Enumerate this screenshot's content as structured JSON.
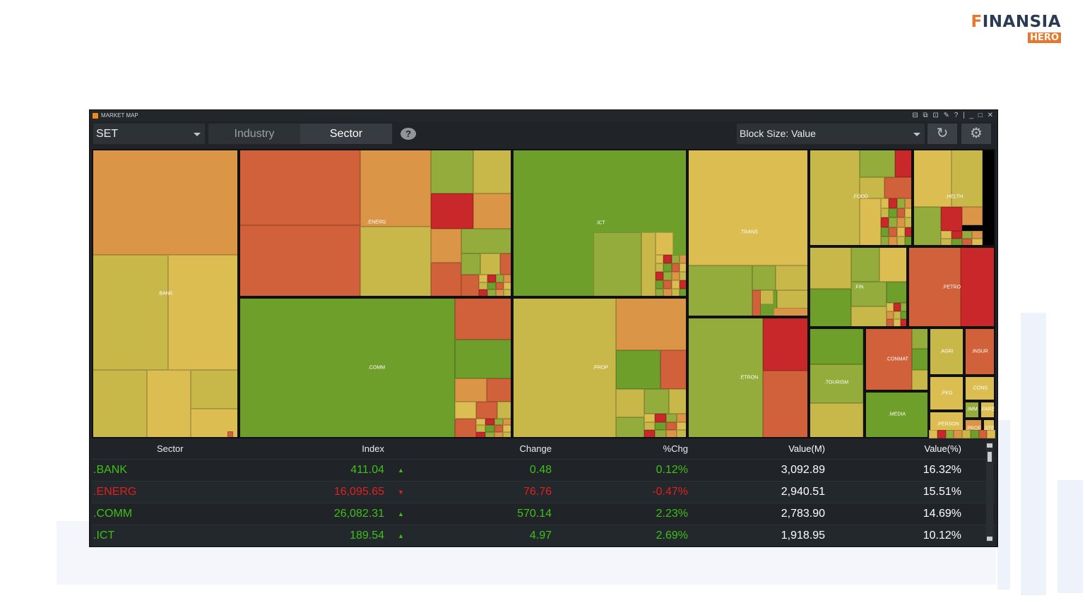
{
  "brand": {
    "name_prefix": "F",
    "name": "INANSIA",
    "sub": "HERO"
  },
  "window": {
    "title": "MARKET MAP",
    "controls": "⊟ ⧉ ⊡ ✎ ? | _ □ ✕"
  },
  "toolbar": {
    "market": "SET",
    "tab_industry": "Industry",
    "tab_sector": "Sector",
    "help": "?",
    "block_size": "Block Size: Value",
    "refresh_icon": "↻",
    "settings_icon": "⚙"
  },
  "colors": {
    "up_strong": "#6e9f2a",
    "up_mid": "#93ac3c",
    "neutral": "#c8b84a",
    "yellow": "#dbbd52",
    "orange": "#db9547",
    "down_mid": "#d1613a",
    "down_strong": "#c9282a",
    "positive_text": "#3fbf18",
    "negative_text": "#e02020"
  },
  "treemap": {
    "sectors": [
      ".BANK",
      ".ENERG",
      ".COMM",
      ".ICT",
      ".PROP",
      ".TRANS",
      ".ETRON",
      ".FOOD",
      ".HELTH",
      ".FIN",
      ".PETRO",
      ".TOURISM",
      ".CONMAT",
      ".AGRI",
      ".INSUR",
      ".PKG",
      ".CONS",
      ".MEDIA",
      ".PERSON",
      ".IMM",
      ".FARE",
      ".PROF",
      ".STE"
    ]
  },
  "grid": {
    "headers": {
      "sector": "Sector",
      "index": "Index",
      "change": "Change",
      "pct": "%Chg",
      "value": "Value(M)",
      "value_pct": "Value(%)"
    },
    "rows": [
      {
        "sector": ".BANK",
        "index": "411.04",
        "arrow": "▲",
        "change": "0.48",
        "pct": "0.12%",
        "value": "3,092.89",
        "value_pct": "16.32%",
        "dir": "up"
      },
      {
        "sector": ".ENERG",
        "index": "16,095.65",
        "arrow": "▼",
        "change": "76.76",
        "pct": "-0.47%",
        "value": "2,940.51",
        "value_pct": "15.51%",
        "dir": "down"
      },
      {
        "sector": ".COMM",
        "index": "26,082.31",
        "arrow": "▲",
        "change": "570.14",
        "pct": "2.23%",
        "value": "2,783.90",
        "value_pct": "14.69%",
        "dir": "up"
      },
      {
        "sector": ".ICT",
        "index": "189.54",
        "arrow": "▲",
        "change": "4.97",
        "pct": "2.69%",
        "value": "1,918.95",
        "value_pct": "10.12%",
        "dir": "up"
      }
    ]
  }
}
